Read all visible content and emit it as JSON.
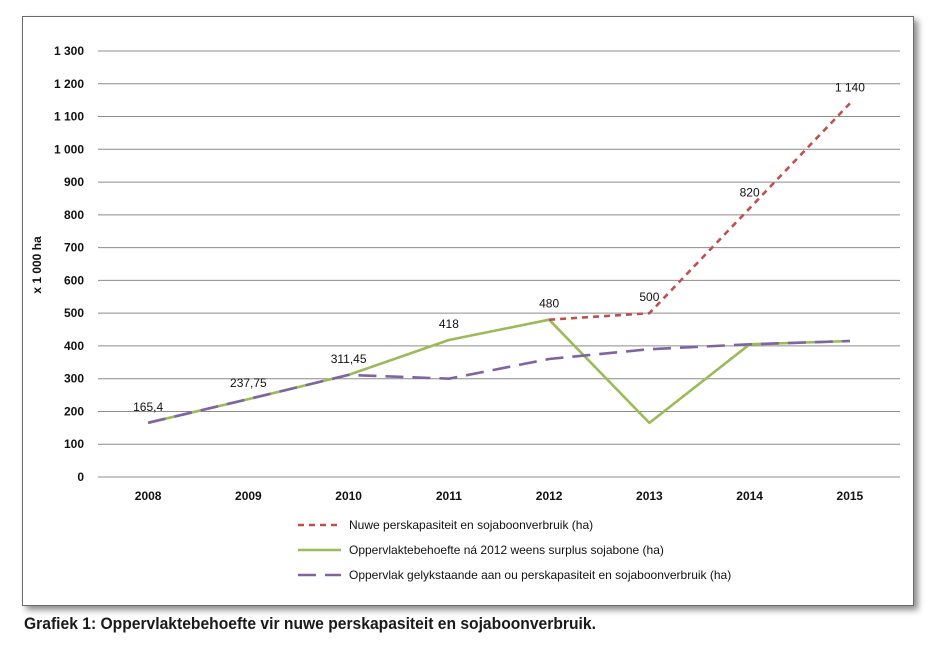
{
  "caption": "Grafiek 1: Oppervlaktebehoefte vir nuwe perskapasiteit en sojaboonverbruik.",
  "chart_data": {
    "type": "line",
    "ylabel": "x 1 000 ha",
    "xlabel": "",
    "ylim": [
      0,
      1300
    ],
    "yticks": [
      0,
      100,
      200,
      300,
      400,
      500,
      600,
      700,
      800,
      900,
      1000,
      1100,
      1200,
      1300
    ],
    "ytick_labels": [
      "0",
      "100",
      "200",
      "300",
      "400",
      "500",
      "600",
      "700",
      "800",
      "900",
      "1 000",
      "1 100",
      "1 200",
      "1 300"
    ],
    "categories": [
      "2008",
      "2009",
      "2010",
      "2011",
      "2012",
      "2013",
      "2014",
      "2015"
    ],
    "grid": true,
    "legend_position": "bottom",
    "series": [
      {
        "name": "Nuwe perskapasiteit en sojaboonverbruik (ha)",
        "color": "#c0504d",
        "style": "dashed",
        "values": [
          null,
          null,
          null,
          null,
          480,
          500,
          820,
          1140
        ]
      },
      {
        "name": "Oppervlaktebehoefte ná 2012 weens surplus sojabone (ha)",
        "color": "#9bbb59",
        "style": "solid",
        "values": [
          165.4,
          237.75,
          311.45,
          418,
          480,
          165,
          405,
          415
        ]
      },
      {
        "name": "Oppervlak gelykstaande aan ou perskapasiteit en sojaboonverbruik (ha)",
        "color": "#8064a2",
        "style": "longdash",
        "values": [
          165.4,
          237.75,
          311.45,
          300,
          360,
          390,
          405,
          415
        ]
      }
    ],
    "data_labels": [
      {
        "category": "2008",
        "value": 165.4,
        "text": "165,4"
      },
      {
        "category": "2009",
        "value": 237.75,
        "text": "237,75"
      },
      {
        "category": "2010",
        "value": 311.45,
        "text": "311,45"
      },
      {
        "category": "2011",
        "value": 418,
        "text": "418"
      },
      {
        "category": "2012",
        "value": 480,
        "text": "480"
      },
      {
        "category": "2013",
        "value": 500,
        "text": "500"
      },
      {
        "category": "2014",
        "value": 820,
        "text": "820"
      },
      {
        "category": "2015",
        "value": 1140,
        "text": "1 140"
      }
    ]
  }
}
